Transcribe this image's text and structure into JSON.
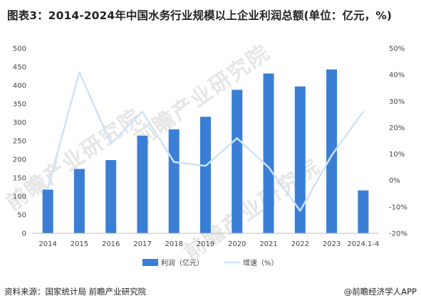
{
  "header": {
    "title": "图表3：2014-2024年中国水务行业规模以上企业利润总额(单位：亿元，%)"
  },
  "footer": {
    "source": "资料来源：国家统计局 前瞻产业研究院",
    "brand": "@前瞻经济学人APP"
  },
  "watermark": {
    "text": "前瞻产业研究院"
  },
  "colors": {
    "bar": "#3a7fd5",
    "line": "#cfe2f7",
    "grid": "#e8e8e8"
  },
  "chart_data": {
    "type": "bar",
    "categories": [
      "2014",
      "2015",
      "2016",
      "2017",
      "2018",
      "2019",
      "2020",
      "2021",
      "2022",
      "2023",
      "2024.1-4"
    ],
    "series": [
      {
        "name": "利润（亿元）",
        "type": "bar",
        "axis": "left",
        "values": [
          118,
          174,
          198,
          264,
          281,
          315,
          388,
          432,
          397,
          443,
          116
        ]
      },
      {
        "name": "增速（%）",
        "type": "line",
        "axis": "right",
        "values": [
          -3,
          41,
          14,
          26,
          7,
          5.5,
          16,
          5,
          -11.5,
          9.5,
          26
        ]
      }
    ],
    "yleft": {
      "min": 0,
      "max": 500,
      "ticks": [
        "0",
        "50",
        "100",
        "150",
        "200",
        "250",
        "300",
        "350",
        "400",
        "450",
        "500"
      ]
    },
    "yright": {
      "min": -20,
      "max": 50,
      "ticks": [
        "-20%",
        "-10%",
        "0%",
        "10%",
        "20%",
        "30%",
        "40%",
        "50%"
      ]
    },
    "legend": [
      "利润（亿元）",
      "增速（%）"
    ],
    "legend_position": "bottom",
    "grid": false
  }
}
